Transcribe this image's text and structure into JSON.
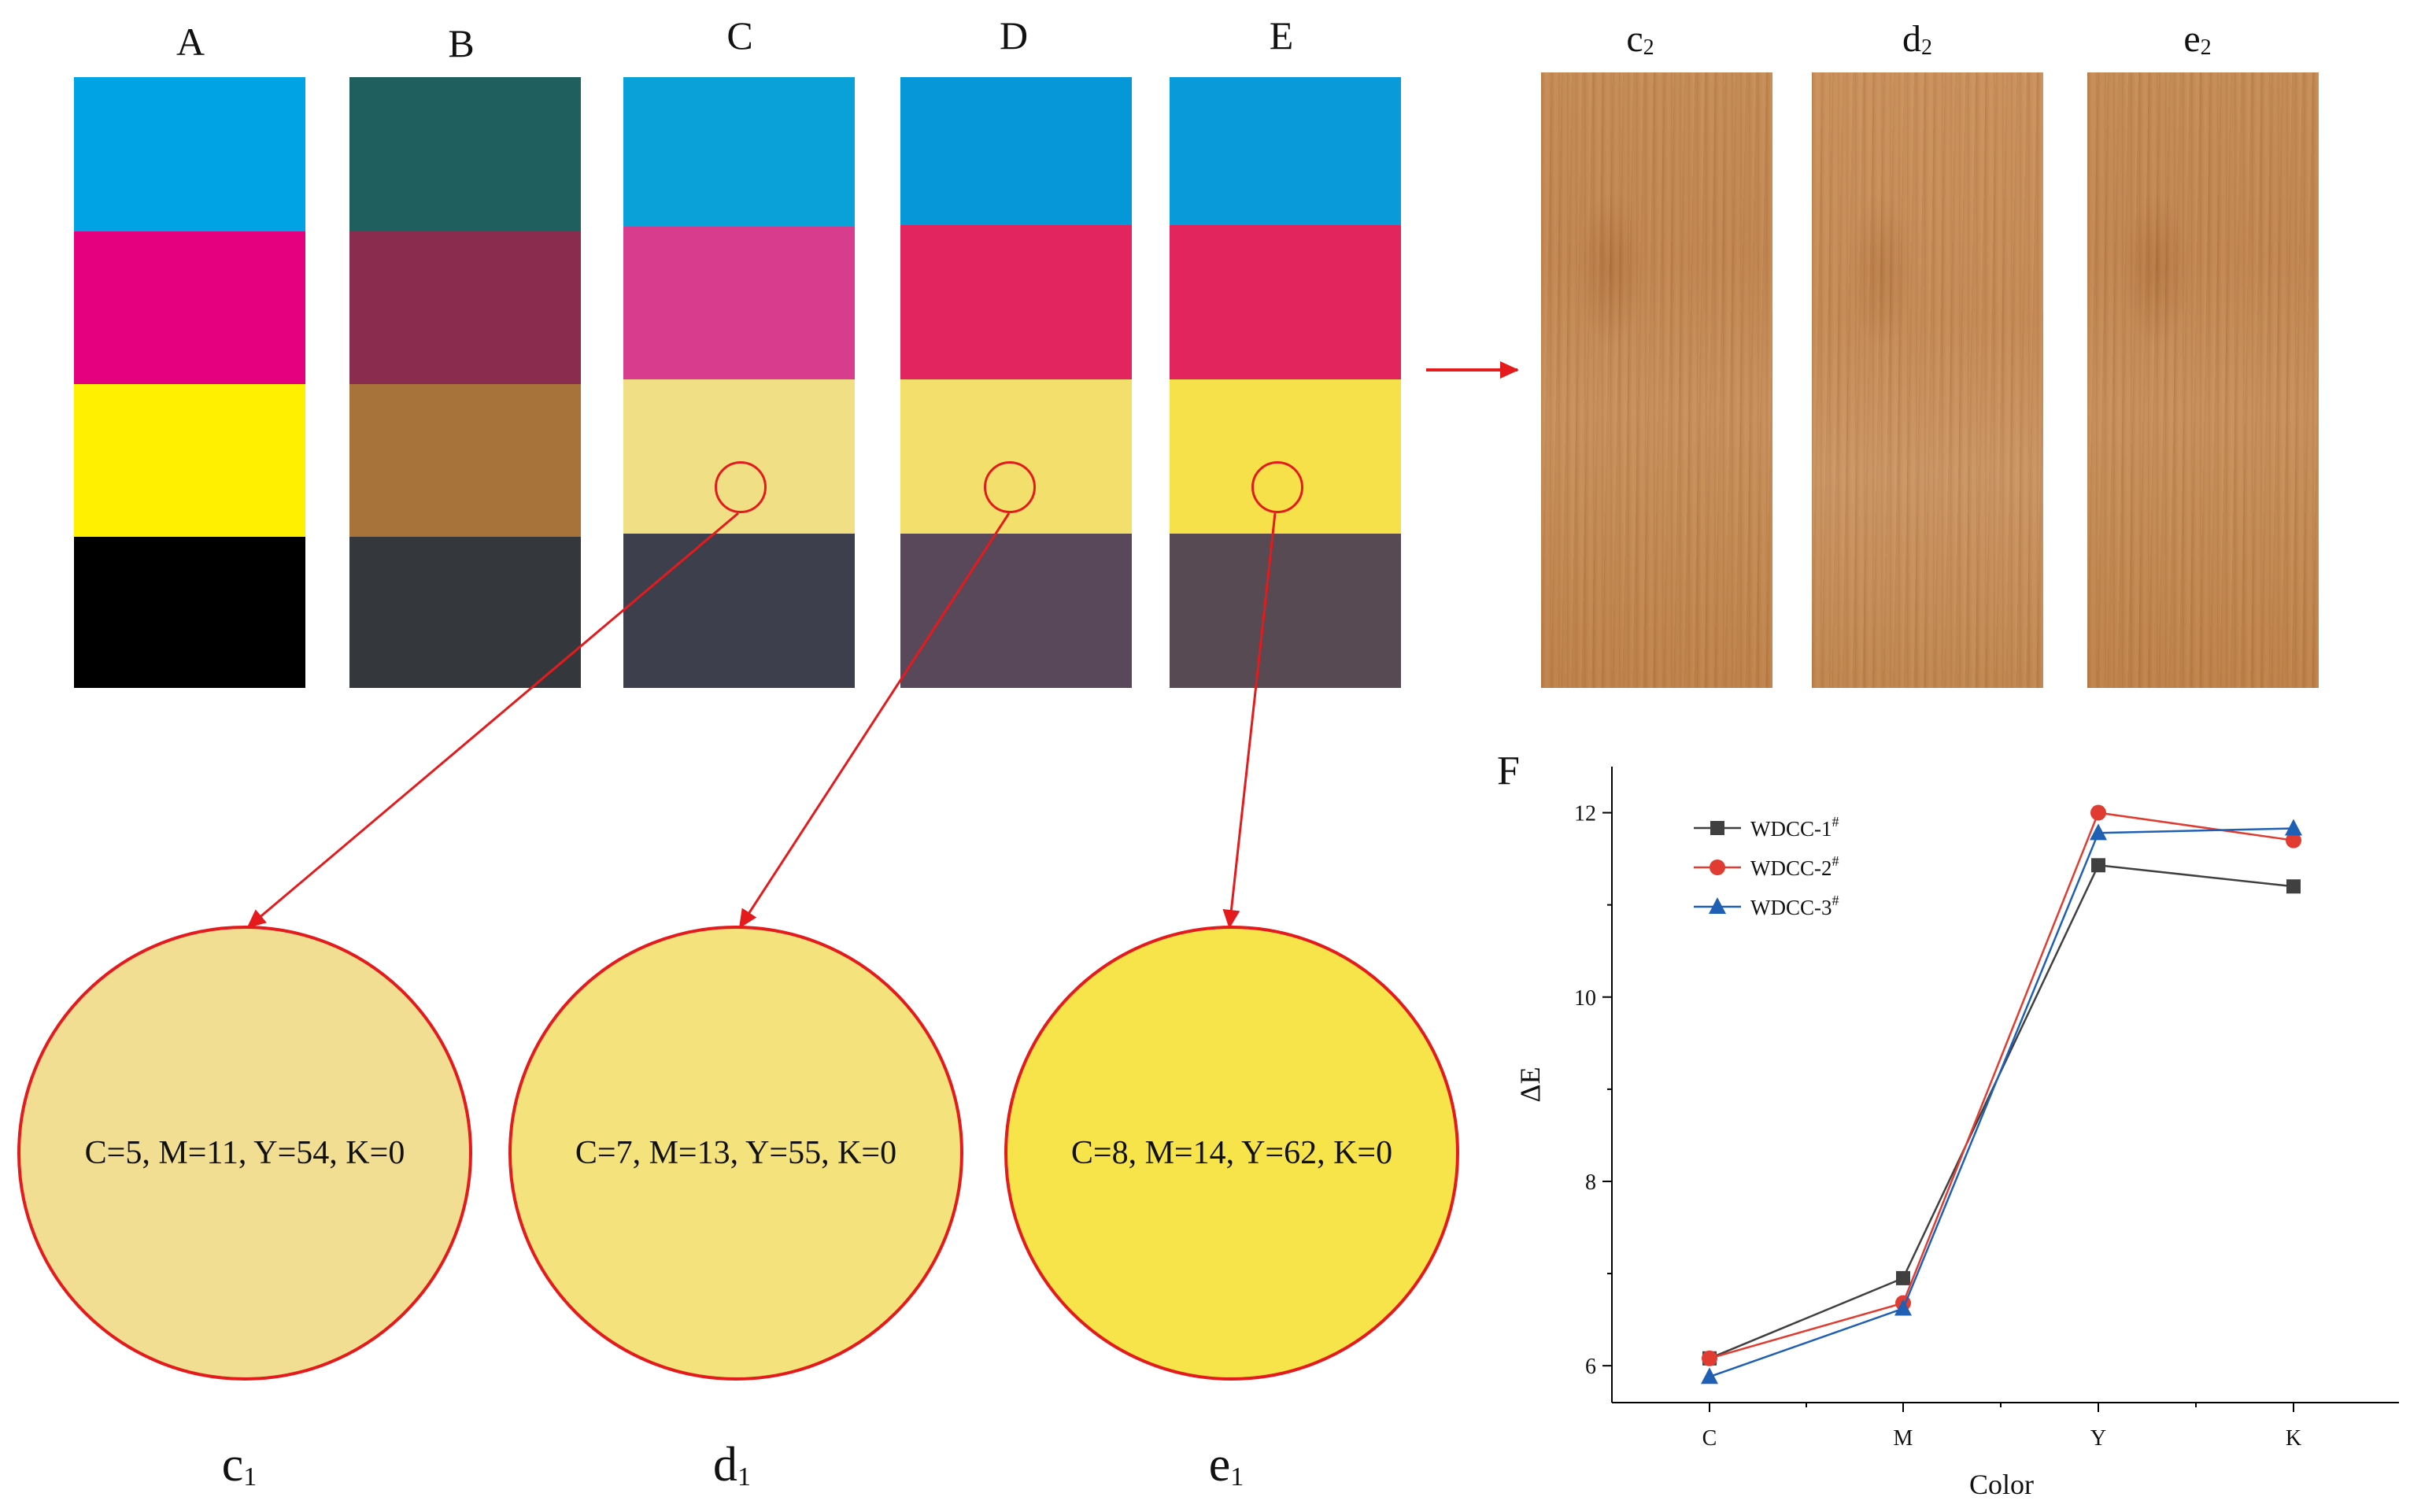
{
  "panels": {
    "A": {
      "label": "A",
      "colors": [
        "#00a3e4",
        "#e4007f",
        "#fff000",
        "#000000"
      ]
    },
    "B": {
      "label": "B",
      "colors": [
        "#1f5f5d",
        "#8a2c4d",
        "#a8733b",
        "#34383c"
      ]
    },
    "C": {
      "label": "C",
      "colors": [
        "#0aa0d8",
        "#d83c8c",
        "#f1df86",
        "#3e3f4c"
      ]
    },
    "D": {
      "label": "D",
      "colors": [
        "#0597d8",
        "#e2255f",
        "#f3e06c",
        "#58485a"
      ]
    },
    "E": {
      "label": "E",
      "colors": [
        "#089ad9",
        "#e2255d",
        "#f6e14a",
        "#574a52"
      ]
    }
  },
  "wood_panels": {
    "c2": {
      "letter": "c",
      "sub": "2"
    },
    "d2": {
      "letter": "d",
      "sub": "2"
    },
    "e2": {
      "letter": "e",
      "sub": "2"
    }
  },
  "zoom_circles": {
    "c1": {
      "text": "C=5, M=11, Y=54, K=0",
      "letter": "c",
      "sub": "1",
      "color": "#f2de93"
    },
    "d1": {
      "text": "C=7, M=13, Y=55, K=0",
      "letter": "d",
      "sub": "1",
      "color": "#f4e27c"
    },
    "e1": {
      "text": "C=8, M=14, Y=62, K=0",
      "letter": "e",
      "sub": "1",
      "color": "#f7e34a"
    }
  },
  "panel_F_label": "F",
  "accent_red": "#e41a1c",
  "chart_data": {
    "type": "line",
    "title": "",
    "xlabel": "Color",
    "ylabel": "ΔE",
    "categories": [
      "C",
      "M",
      "Y",
      "K"
    ],
    "ylim": [
      5.6,
      12.5
    ],
    "yticks": [
      6,
      8,
      10,
      12
    ],
    "legend_position": "top-left",
    "series": [
      {
        "name": "WDCC-1#",
        "label_base": "WDCC-1",
        "label_sup": "#",
        "marker": "square",
        "color": "#404040",
        "values": [
          6.08,
          6.95,
          11.43,
          11.2
        ]
      },
      {
        "name": "WDCC-2#",
        "label_base": "WDCC-2",
        "label_sup": "#",
        "marker": "circle",
        "color": "#e03c31",
        "values": [
          6.08,
          6.68,
          12.0,
          11.7
        ]
      },
      {
        "name": "WDCC-3#",
        "label_base": "WDCC-3",
        "label_sup": "#",
        "marker": "triangle",
        "color": "#1f5fb4",
        "values": [
          5.88,
          6.62,
          11.78,
          11.83
        ]
      }
    ]
  }
}
